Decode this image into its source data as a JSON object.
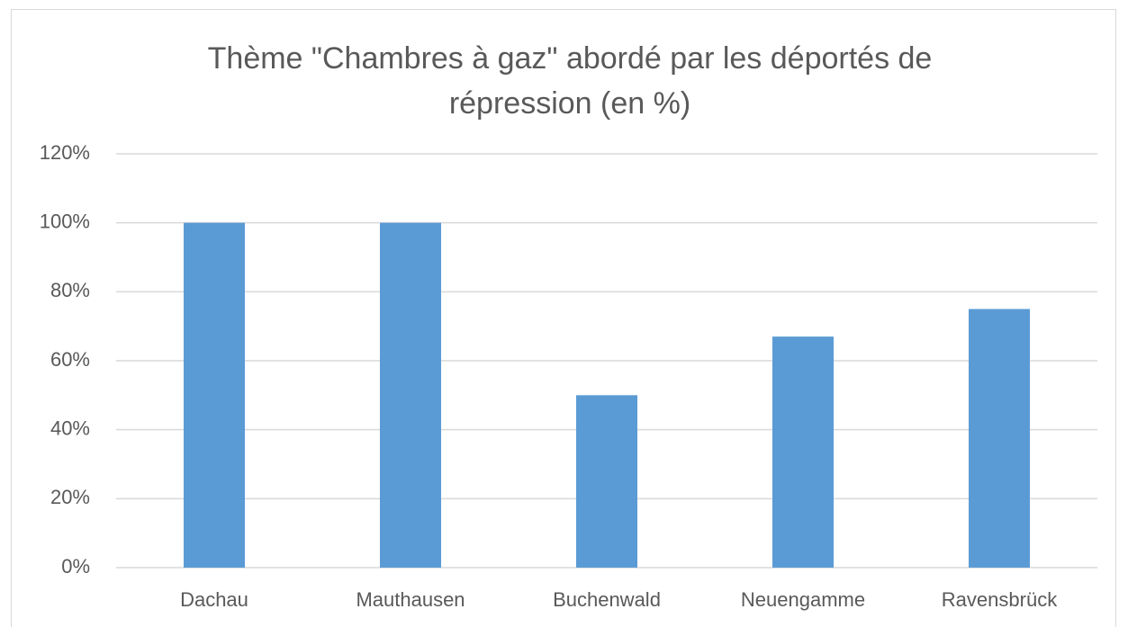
{
  "chart_data": {
    "type": "bar",
    "title": "Thème \"Chambres à gaz\" abordé par les déportés de répression (en %)",
    "categories": [
      "Dachau",
      "Mauthausen",
      "Buchenwald",
      "Neuengamme",
      "Ravensbrück"
    ],
    "values": [
      100,
      100,
      50,
      67,
      75
    ],
    "color": "#5b9bd5",
    "ylim": [
      0,
      120
    ],
    "yticks": [
      {
        "value": 0,
        "label": "0%"
      },
      {
        "value": 20,
        "label": "20%"
      },
      {
        "value": 40,
        "label": "40%"
      },
      {
        "value": 60,
        "label": "60%"
      },
      {
        "value": 80,
        "label": "80%"
      },
      {
        "value": 100,
        "label": "100%"
      },
      {
        "value": 120,
        "label": "120%"
      }
    ],
    "grid": true
  }
}
